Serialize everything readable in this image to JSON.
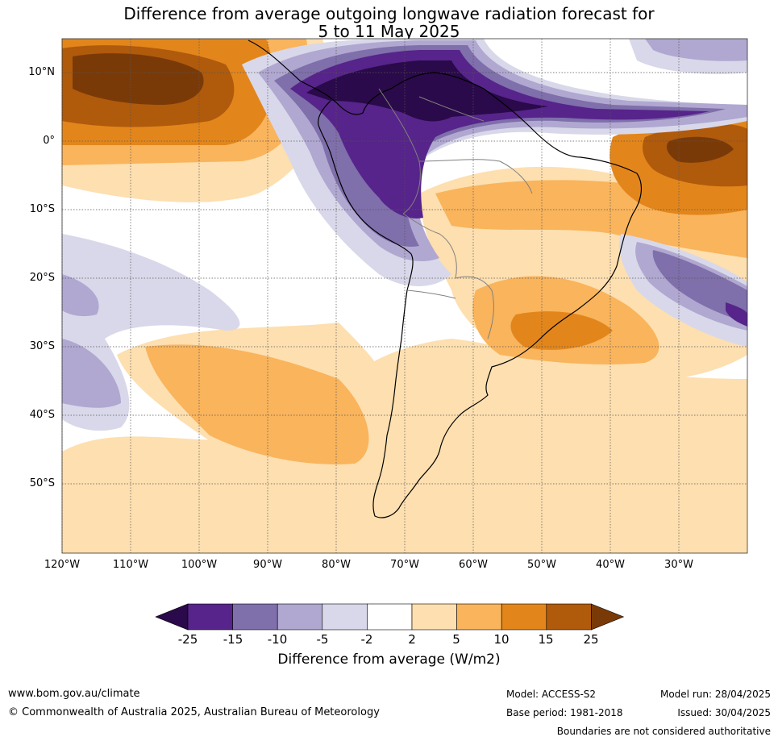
{
  "title_line1": "Difference from average outgoing longwave radiation forecast for",
  "title_line2": "5 to 11 May 2025",
  "lat_labels": [
    "10°N",
    "0°",
    "10°S",
    "20°S",
    "30°S",
    "40°S",
    "50°S"
  ],
  "lon_labels": [
    "120°W",
    "110°W",
    "100°W",
    "90°W",
    "80°W",
    "70°W",
    "60°W",
    "50°W",
    "40°W",
    "30°W"
  ],
  "colorbar": {
    "ticks": [
      "-25",
      "-15",
      "-10",
      "-5",
      "-2",
      "2",
      "5",
      "10",
      "15",
      "25"
    ],
    "colors": [
      "#2a0a4a",
      "#56248a",
      "#7f6fab",
      "#b0a8d0",
      "#d8d8ea",
      "#ffffff",
      "#fddfb0",
      "#f9b45c",
      "#e2861c",
      "#b05a0c",
      "#7a3a08"
    ],
    "label": "Difference from average (W/m2)"
  },
  "footer": {
    "url": "www.bom.gov.au/climate",
    "copyright": "© Commonwealth of Australia 2025, Australian Bureau of Meteorology",
    "model": "Model: ACCESS-S2",
    "base_period": "Base period: 1981-2018",
    "model_run": "Model run: 28/04/2025",
    "issued": "Issued: 30/04/2025",
    "disclaimer": "Boundaries are not considered authoritative"
  }
}
